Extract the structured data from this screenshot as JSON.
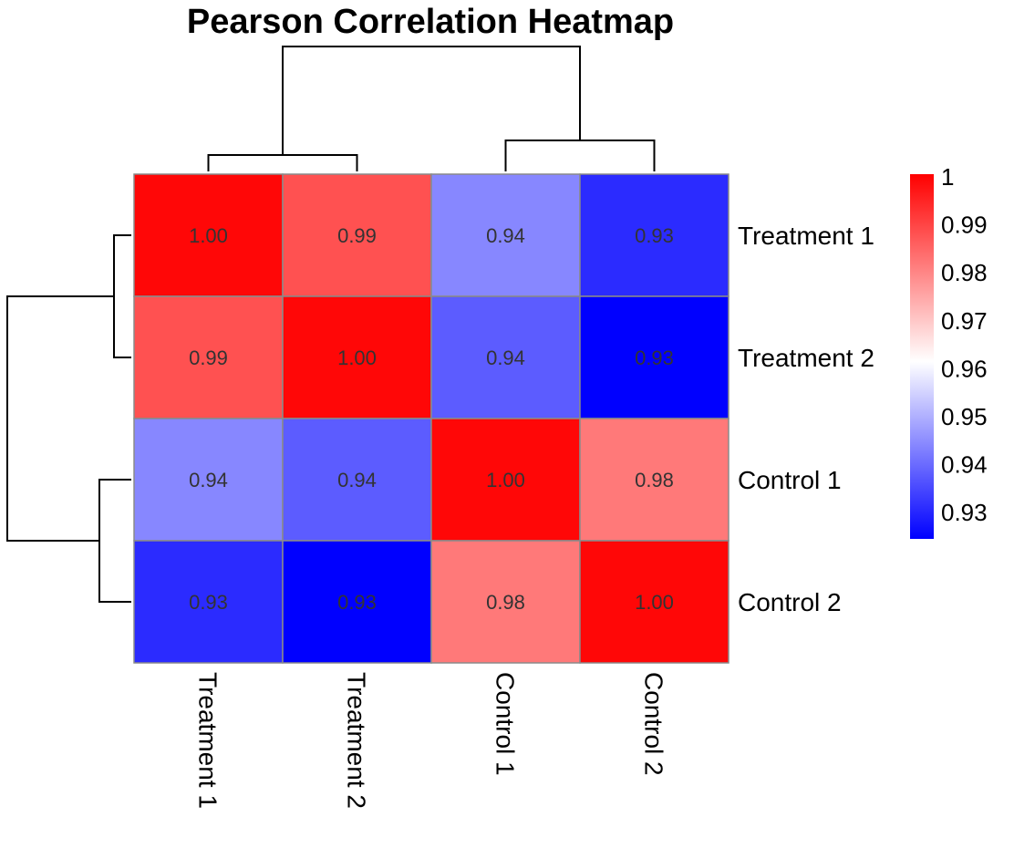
{
  "chart_data": {
    "type": "heatmap",
    "title": "Pearson Correlation Heatmap",
    "rows": [
      "Treatment 1",
      "Treatment 2",
      "Control 1",
      "Control 2"
    ],
    "columns": [
      "Treatment 1",
      "Treatment 2",
      "Control 1",
      "Control 2"
    ],
    "values": [
      [
        1.0,
        0.99,
        0.94,
        0.93
      ],
      [
        0.99,
        1.0,
        0.94,
        0.93
      ],
      [
        0.94,
        0.94,
        1.0,
        0.98
      ],
      [
        0.93,
        0.93,
        0.98,
        1.0
      ]
    ],
    "display_values": [
      [
        "1.00",
        "0.99",
        "0.94",
        "0.93"
      ],
      [
        "0.99",
        "1.00",
        "0.94",
        "0.93"
      ],
      [
        "0.94",
        "0.94",
        "1.00",
        "0.98"
      ],
      [
        "0.93",
        "0.93",
        "0.98",
        "1.00"
      ]
    ],
    "fill_values": [
      [
        0.999,
        0.988,
        0.945,
        0.932
      ],
      [
        0.988,
        0.999,
        0.939,
        0.926
      ],
      [
        0.945,
        0.939,
        0.999,
        0.982
      ],
      [
        0.932,
        0.926,
        0.982,
        0.999
      ]
    ],
    "color_scale": {
      "low": "#0000ff",
      "mid": "#ffffff",
      "high": "#ff0000",
      "min": 0.926,
      "mid_value": 0.962,
      "max": 1.0
    },
    "legend": {
      "placement": "right",
      "ticks": [
        1,
        0.99,
        0.98,
        0.97,
        0.96,
        0.95,
        0.94,
        0.93
      ],
      "tick_labels": [
        "1",
        "0.99",
        "0.98",
        "0.97",
        "0.96",
        "0.95",
        "0.94",
        "0.93"
      ]
    },
    "dendrograms": {
      "row_clusters": [
        [
          "Treatment 1",
          "Treatment 2"
        ],
        [
          "Control 1",
          "Control 2"
        ]
      ],
      "column_clusters": [
        [
          "Treatment 1",
          "Treatment 2"
        ],
        [
          "Control 1",
          "Control 2"
        ]
      ]
    },
    "cell_border_color": "#8a8a8a"
  }
}
